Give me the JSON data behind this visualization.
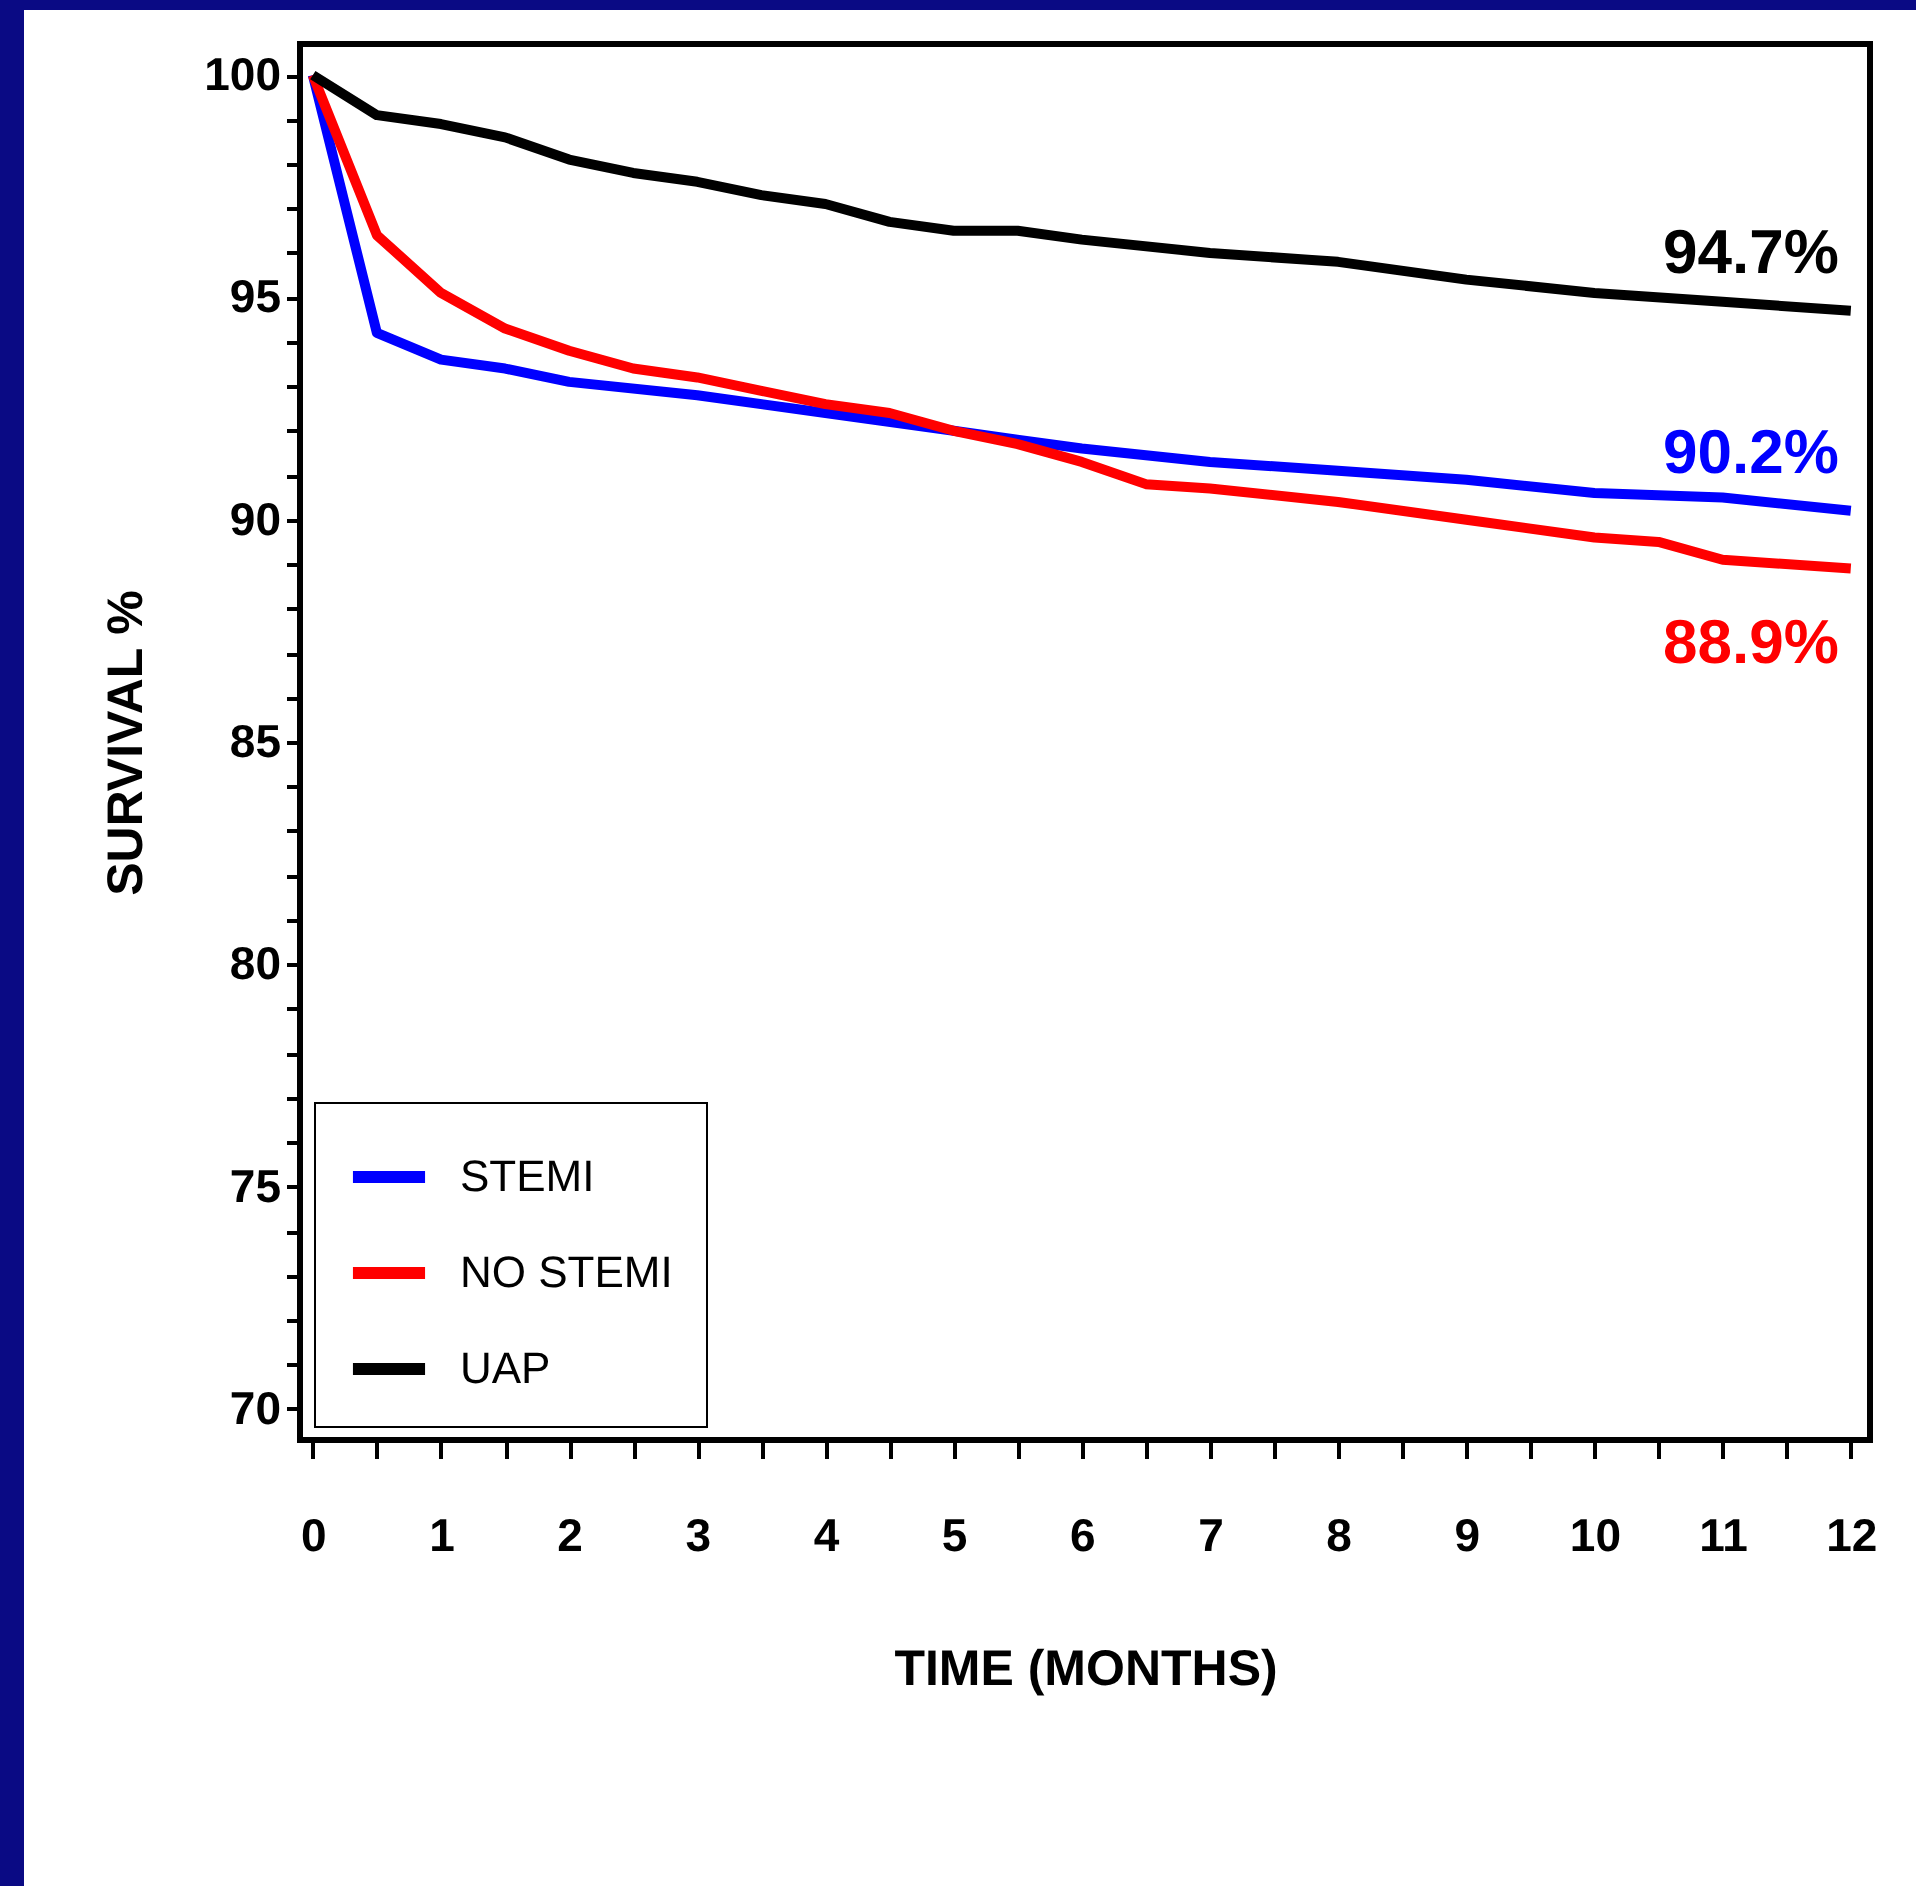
{
  "chart_data": {
    "type": "line",
    "xlabel": "TIME (MONTHS)",
    "ylabel": "SURVIVAL %",
    "xlim": [
      -0.1,
      12.15
    ],
    "ylim": [
      69.3,
      100.7
    ],
    "xticks": [
      0,
      {
        "value": 0.5,
        "label": null
      },
      1,
      {
        "value": 1.5,
        "label": null
      },
      2,
      {
        "value": 2.5,
        "label": null
      },
      3,
      {
        "value": 3.5,
        "label": null
      },
      4,
      {
        "value": 4.5,
        "label": null
      },
      5,
      {
        "value": 5.5,
        "label": null
      },
      6,
      {
        "value": 6.5,
        "label": null
      },
      7,
      {
        "value": 7.5,
        "label": null
      },
      8,
      {
        "value": 8.5,
        "label": null
      },
      9,
      {
        "value": 9.5,
        "label": null
      },
      10,
      {
        "value": 10.5,
        "label": null
      },
      11,
      {
        "value": 11.5,
        "label": null
      },
      12
    ],
    "yticks": [
      70,
      {
        "value": 71,
        "label": null
      },
      {
        "value": 72,
        "label": null
      },
      {
        "value": 73,
        "label": null
      },
      {
        "value": 74,
        "label": null
      },
      75,
      {
        "value": 76,
        "label": null
      },
      {
        "value": 77,
        "label": null
      },
      {
        "value": 78,
        "label": null
      },
      {
        "value": 79,
        "label": null
      },
      80,
      {
        "value": 81,
        "label": null
      },
      {
        "value": 82,
        "label": null
      },
      {
        "value": 83,
        "label": null
      },
      {
        "value": 84,
        "label": null
      },
      85,
      {
        "value": 86,
        "label": null
      },
      {
        "value": 87,
        "label": null
      },
      {
        "value": 88,
        "label": null
      },
      {
        "value": 89,
        "label": null
      },
      90,
      {
        "value": 91,
        "label": null
      },
      {
        "value": 92,
        "label": null
      },
      {
        "value": 93,
        "label": null
      },
      {
        "value": 94,
        "label": null
      },
      95,
      {
        "value": 96,
        "label": null
      },
      {
        "value": 97,
        "label": null
      },
      {
        "value": 98,
        "label": null
      },
      {
        "value": 99,
        "label": null
      },
      100
    ],
    "grid": false,
    "legend": "bottom left",
    "series": [
      {
        "name": "STEMI",
        "color": "#0000ff",
        "x": [
          0,
          0.5,
          1,
          1.5,
          2,
          3,
          4,
          5,
          6,
          7,
          8,
          9,
          10,
          11,
          12
        ],
        "values": [
          100,
          94.2,
          93.6,
          93.4,
          93.1,
          92.8,
          92.4,
          92.0,
          91.6,
          91.3,
          91.1,
          90.9,
          90.6,
          90.5,
          90.2
        ]
      },
      {
        "name": "NO STEMI",
        "color": "#ff0000",
        "x": [
          0,
          0.5,
          1,
          1.5,
          2,
          2.5,
          3,
          3.5,
          4,
          4.5,
          5,
          5.5,
          6,
          6.5,
          7,
          8,
          9,
          10,
          10.5,
          11,
          12
        ],
        "values": [
          100,
          96.4,
          95.1,
          94.3,
          93.8,
          93.4,
          93.2,
          92.9,
          92.6,
          92.4,
          92.0,
          91.7,
          91.3,
          90.8,
          90.7,
          90.4,
          90.0,
          89.6,
          89.5,
          89.1,
          88.9
        ]
      },
      {
        "name": "UAP",
        "color": "#000000",
        "x": [
          0,
          0.5,
          1,
          1.5,
          2,
          2.5,
          3,
          3.5,
          4,
          4.5,
          5,
          5.5,
          6,
          7,
          8,
          9,
          10,
          11,
          12
        ],
        "values": [
          100,
          99.1,
          98.9,
          98.6,
          98.1,
          97.8,
          97.6,
          97.3,
          97.1,
          96.7,
          96.5,
          96.5,
          96.3,
          96.0,
          95.8,
          95.4,
          95.1,
          94.9,
          94.7
        ]
      }
    ],
    "annotations": [
      "90.2%",
      "88.9%",
      "94.7%"
    ]
  }
}
